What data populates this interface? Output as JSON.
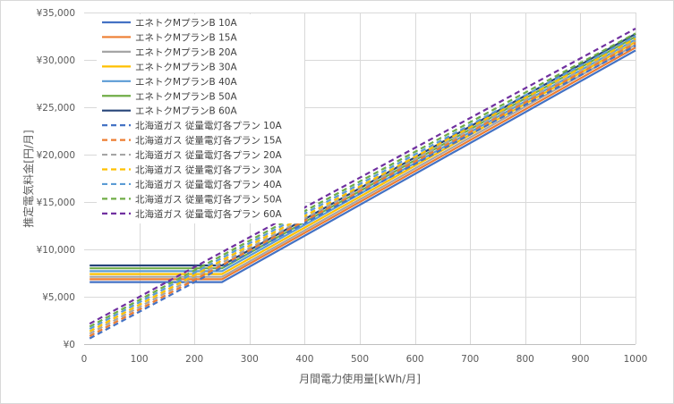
{
  "chart_data": {
    "type": "line",
    "title": "",
    "xlabel": "月間電力使用量[kWh/月]",
    "ylabel": "推定電気料金[円/月]",
    "xlim": [
      0,
      1000
    ],
    "ylim": [
      0,
      35000
    ],
    "x_ticks": [
      "0",
      "100",
      "200",
      "300",
      "400",
      "500",
      "600",
      "700",
      "800",
      "900",
      "1000"
    ],
    "y_ticks": [
      "¥0",
      "¥5,000",
      "¥10,000",
      "¥15,000",
      "¥20,000",
      "¥25,000",
      "¥30,000",
      "¥35,000"
    ],
    "grid": true,
    "legend_position": "top-left",
    "series": [
      {
        "name": "エネトクMプランB 10A",
        "color": "#4472c4",
        "dash": false,
        "x": [
          10,
          250,
          1000
        ],
        "y": [
          6550,
          6550,
          31000
        ]
      },
      {
        "name": "エネトクMプランB 15A",
        "color": "#ed7d31",
        "dash": false,
        "x": [
          10,
          250,
          1000
        ],
        "y": [
          6850,
          6850,
          31300
        ]
      },
      {
        "name": "エネトクMプランB 20A",
        "color": "#a5a5a5",
        "dash": false,
        "x": [
          10,
          250,
          1000
        ],
        "y": [
          7100,
          7100,
          31600
        ]
      },
      {
        "name": "エネトクMプランB 30A",
        "color": "#ffc000",
        "dash": false,
        "x": [
          10,
          250,
          1000
        ],
        "y": [
          7400,
          7400,
          31900
        ]
      },
      {
        "name": "エネトクMプランB 40A",
        "color": "#5b9bd5",
        "dash": false,
        "x": [
          10,
          250,
          1000
        ],
        "y": [
          7700,
          7700,
          32150
        ]
      },
      {
        "name": "エネトクMプランB 50A",
        "color": "#70ad47",
        "dash": false,
        "x": [
          10,
          250,
          1000
        ],
        "y": [
          8000,
          8000,
          32450
        ]
      },
      {
        "name": "エネトクMプランB 60A",
        "color": "#264478",
        "dash": false,
        "x": [
          10,
          250,
          1000
        ],
        "y": [
          8300,
          8300,
          32750
        ]
      },
      {
        "name": "北海道ガス 従量電灯各プラン 10A",
        "color": "#4472c4",
        "dash": true,
        "x": [
          10,
          1000
        ],
        "y": [
          600,
          31500
        ]
      },
      {
        "name": "北海道ガス 従量電灯各プラン 15A",
        "color": "#ed7d31",
        "dash": true,
        "x": [
          10,
          1000
        ],
        "y": [
          850,
          31750
        ]
      },
      {
        "name": "北海道ガス 従量電灯各プラン 20A",
        "color": "#a5a5a5",
        "dash": true,
        "x": [
          10,
          1000
        ],
        "y": [
          1100,
          32000
        ]
      },
      {
        "name": "北海道ガス 従量電灯各プラン 30A",
        "color": "#ffc000",
        "dash": true,
        "x": [
          10,
          1000
        ],
        "y": [
          1350,
          32250
        ]
      },
      {
        "name": "北海道ガス 従量電灯各プラン 40A",
        "color": "#5b9bd5",
        "dash": true,
        "x": [
          10,
          1000
        ],
        "y": [
          1600,
          32500
        ]
      },
      {
        "name": "北海道ガス 従量電灯各プラン 50A",
        "color": "#70ad47",
        "dash": true,
        "x": [
          10,
          1000
        ],
        "y": [
          1850,
          32800
        ]
      },
      {
        "name": "北海道ガス 従量電灯各プラン 60A",
        "color": "#7030a0",
        "dash": true,
        "x": [
          10,
          1000
        ],
        "y": [
          2150,
          33300
        ]
      }
    ]
  }
}
